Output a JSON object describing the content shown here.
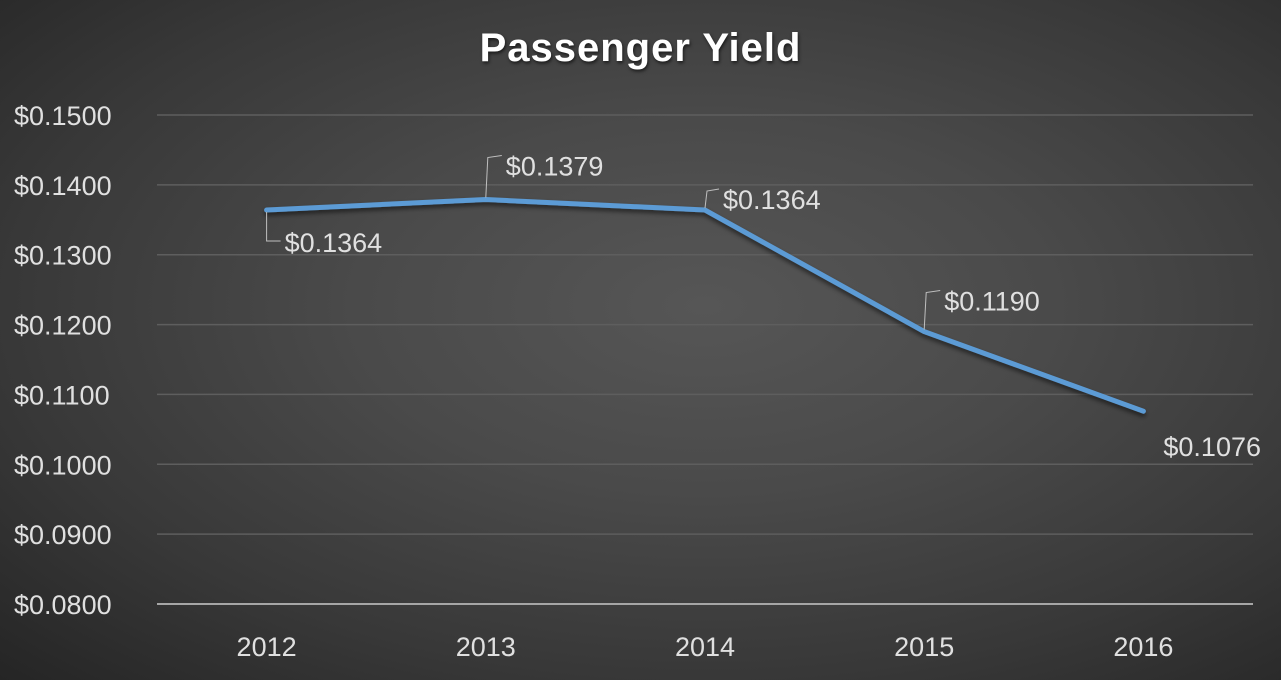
{
  "chart_data": {
    "type": "line",
    "title": "Passenger Yield",
    "xlabel": "",
    "ylabel": "",
    "categories": [
      "2012",
      "2013",
      "2014",
      "2015",
      "2016"
    ],
    "series": [
      {
        "name": "Passenger Yield",
        "values": [
          0.1364,
          0.1379,
          0.1364,
          0.119,
          0.1076
        ],
        "color": "#5b9bd5"
      }
    ],
    "data_labels": [
      "$0.1364",
      "$0.1379",
      "$0.1364",
      "$0.1190",
      "$0.1076"
    ],
    "ylim": [
      0.08,
      0.15
    ],
    "yticks": [
      0.15,
      0.14,
      0.13,
      0.12,
      0.11,
      0.1,
      0.09,
      0.08
    ],
    "ytick_labels": [
      "$0.1500",
      "$0.1400",
      "$0.1300",
      "$0.1200",
      "$0.1100",
      "$0.1000",
      "$0.0900",
      "$0.0800"
    ],
    "grid": true,
    "legend": "none"
  },
  "colors": {
    "line": "#5b9bd5",
    "grid": "#5e5e5e",
    "axis": "#a6a6a6",
    "text": "#e0e0e0",
    "leader": "#bfbfbf"
  }
}
